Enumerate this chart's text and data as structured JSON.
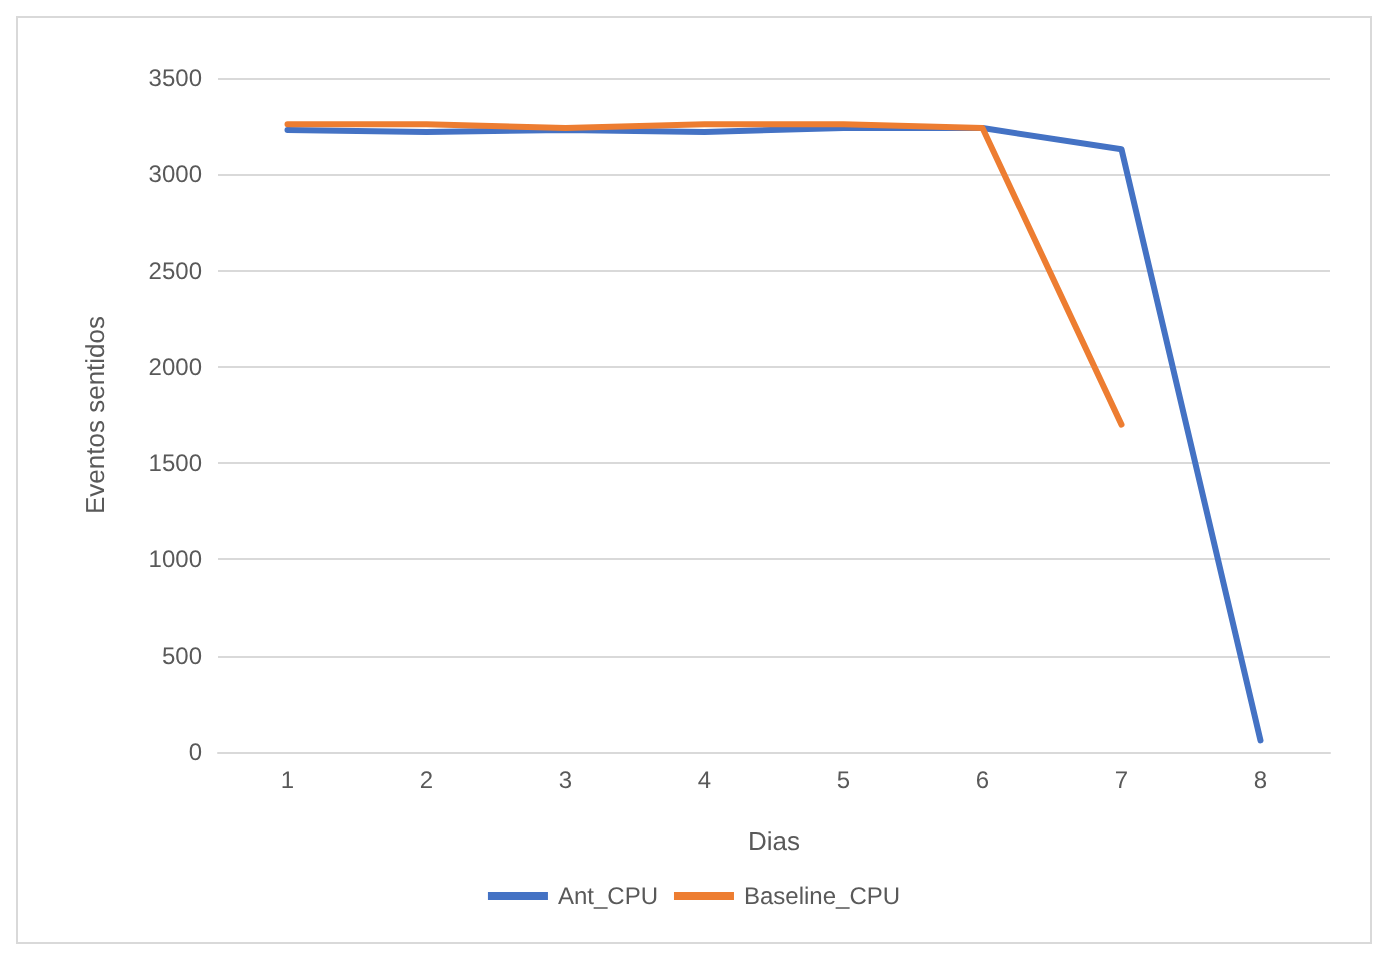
{
  "chart_data": {
    "type": "line",
    "xlabel": "Dias",
    "ylabel": "Eventos sentidos",
    "categories": [
      "1",
      "2",
      "3",
      "4",
      "5",
      "6",
      "7",
      "8"
    ],
    "series": [
      {
        "name": "Ant_CPU",
        "color": "#4472c4",
        "values": [
          3230,
          3220,
          3230,
          3220,
          3240,
          3240,
          3130,
          60
        ]
      },
      {
        "name": "Baseline_CPU",
        "color": "#ed7d31",
        "values": [
          3260,
          3260,
          3240,
          3260,
          3260,
          3240,
          1700,
          null
        ]
      }
    ],
    "ylim": [
      0,
      3500
    ],
    "yticks": [
      0,
      500,
      1000,
      1500,
      2000,
      2500,
      3000,
      3500
    ],
    "grid": "y",
    "legend": "bottom",
    "marker": "none",
    "line_style": "solid"
  }
}
